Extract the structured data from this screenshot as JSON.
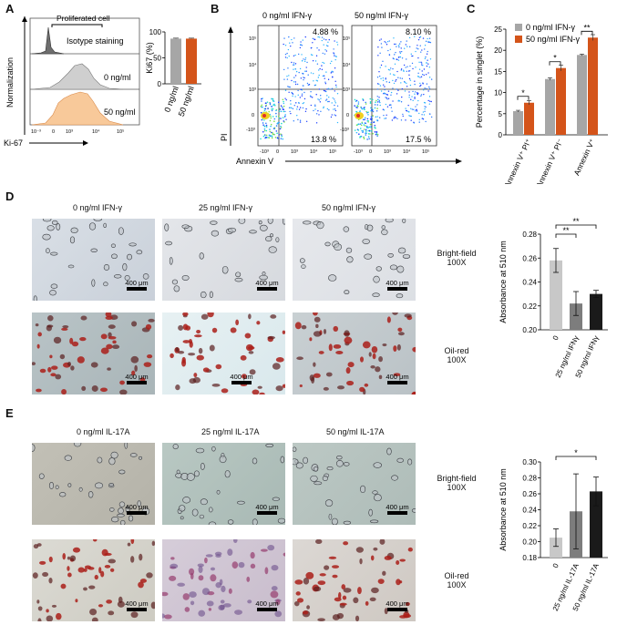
{
  "panels": {
    "A": "A",
    "B": "B",
    "C": "C",
    "D": "D",
    "E": "E"
  },
  "panelA": {
    "hist_labels": {
      "proliferated": "Proliferated cell",
      "isotype": "Isotype staining",
      "c0": "0 ng/ml",
      "c50": "50 ng/ml"
    },
    "yaxis": "Normalization",
    "xaxis": "Ki-67",
    "xticks": [
      "10⁻³",
      "0",
      "10³",
      "10⁴",
      "10⁵"
    ]
  },
  "panelB": {
    "cond0": "0 ng/ml IFN-γ",
    "cond50": "50 ng/ml IFN-γ",
    "q0_ur": "4.88 %",
    "q0_lr": "13.8 %",
    "q50_ur": "8.10 %",
    "q50_lr": "17.5 %",
    "yaxis": "PI",
    "xaxis": "Annexin V",
    "ticks_y": [
      "10⁵",
      "10⁴",
      "10³",
      "0",
      "-10³"
    ],
    "ticks_x": [
      "-10³",
      "0",
      "10³",
      "10⁴",
      "10⁵"
    ]
  },
  "microscopy": {
    "D_cols": [
      "0 ng/ml IFN-γ",
      "25 ng/ml IFN-γ",
      "50 ng/ml IFN-γ"
    ],
    "E_cols": [
      "0 ng/ml IL-17A",
      "25 ng/ml IL-17A",
      "50 ng/ml IL-17A"
    ],
    "rows": {
      "bf1": "Bright-field",
      "bf2": "100X",
      "or1": "Oil-red",
      "or2": "100X"
    },
    "scale": "400 μm"
  },
  "chart_data": [
    {
      "id": "A",
      "type": "bar",
      "title": "",
      "ylabel": "Ki67 (%)",
      "ylim": [
        0,
        100
      ],
      "yticks": [
        0,
        50,
        100
      ],
      "categories": [
        "0 ng/ml",
        "50 ng/ml"
      ],
      "values": [
        87,
        87
      ],
      "errors": [
        1,
        1
      ],
      "colors": [
        "#a6a6a6",
        "#d4541a"
      ]
    },
    {
      "id": "C",
      "type": "bar",
      "ylabel": "Percentage in singlet (%)",
      "ylim": [
        0,
        25
      ],
      "yticks": [
        0,
        5,
        10,
        15,
        20,
        25
      ],
      "categories": [
        "Annexin V⁺ PI⁺",
        "Annexin V⁺ PI⁻",
        "Annexin V⁺"
      ],
      "series": [
        {
          "name": "0 ng/ml IFN-γ",
          "values": [
            5.6,
            13.2,
            18.9
          ],
          "errors": [
            0.2,
            0.3,
            0.2
          ],
          "color": "#a6a6a6"
        },
        {
          "name": "50 ng/ml IFN-γ",
          "values": [
            7.6,
            15.8,
            23.0
          ],
          "errors": [
            0.5,
            0.7,
            0.7
          ],
          "color": "#d4541a"
        }
      ],
      "significance": [
        "*",
        "*",
        "**"
      ]
    },
    {
      "id": "D",
      "type": "bar",
      "ylabel": "Absorbance at 510 nm",
      "ylim": [
        0.2,
        0.28
      ],
      "yticks": [
        "0.20",
        "0.22",
        "0.24",
        "0.26",
        "0.28"
      ],
      "categories": [
        "0",
        "25 ng/ml IFNγ",
        "50 ng/ml IFNγ"
      ],
      "values": [
        0.258,
        0.222,
        0.23
      ],
      "errors": [
        0.01,
        0.01,
        0.003
      ],
      "colors": [
        "#c8c8c8",
        "#7d7d7d",
        "#1a1a1a"
      ],
      "significance": [
        "**",
        "**"
      ]
    },
    {
      "id": "E",
      "type": "bar",
      "ylabel": "Absorbance at 510 nm",
      "ylim": [
        0.18,
        0.3
      ],
      "yticks": [
        "0.18",
        "0.20",
        "0.22",
        "0.24",
        "0.26",
        "0.28",
        "0.30"
      ],
      "categories": [
        "0",
        "25 ng/ml IL-17A",
        "50 ng/ml IL-17A"
      ],
      "values": [
        0.205,
        0.238,
        0.263
      ],
      "errors": [
        0.011,
        0.047,
        0.018
      ],
      "colors": [
        "#c8c8c8",
        "#7d7d7d",
        "#1a1a1a"
      ],
      "significance": [
        "*"
      ]
    }
  ]
}
